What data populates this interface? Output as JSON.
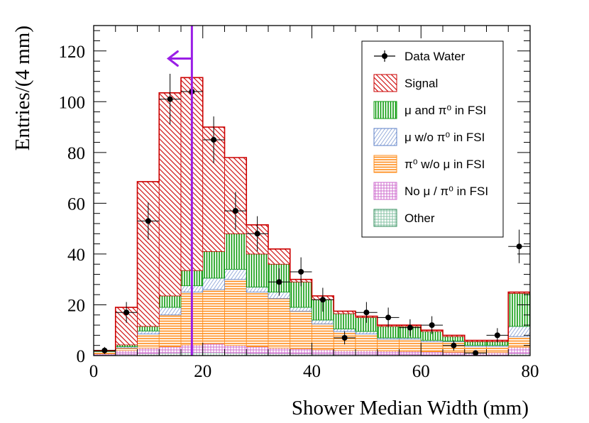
{
  "chart_data": {
    "type": "bar",
    "title": "",
    "xlabel": "Shower Median Width (mm)",
    "ylabel": "Entries/(4 mm)",
    "xlim": [
      0,
      80
    ],
    "ylim": [
      0,
      130
    ],
    "bin_edges": [
      0,
      4,
      8,
      12,
      16,
      20,
      24,
      28,
      32,
      36,
      40,
      44,
      48,
      52,
      56,
      60,
      64,
      68,
      72,
      76,
      80
    ],
    "x_ticks": [
      "0",
      "20",
      "40",
      "60",
      "80"
    ],
    "y_ticks": [
      "0",
      "20",
      "40",
      "60",
      "80",
      "100",
      "120"
    ],
    "cut_line_x": 18,
    "cut_arrow_direction": "left",
    "stack": [
      {
        "name": "Other",
        "color": "#2e8b57",
        "values": [
          0.3,
          0.5,
          0.8,
          1.0,
          1.2,
          1.2,
          1.0,
          0.9,
          0.8,
          0.7,
          0.6,
          0.5,
          0.5,
          0.4,
          0.4,
          0.3,
          0.3,
          0.2,
          0.2,
          0.8
        ]
      },
      {
        "name": "No μ / π⁰ in FSI",
        "color": "#cc66cc",
        "values": [
          0.4,
          1.5,
          2.2,
          2.5,
          3.0,
          3.5,
          3.0,
          2.6,
          2.2,
          2.0,
          1.7,
          1.5,
          1.5,
          1.4,
          1.3,
          1.2,
          1.0,
          1.0,
          1.0,
          2.5
        ]
      },
      {
        "name": "π⁰ w/o μ in FSI",
        "color": "#ff8c1a",
        "values": [
          0.8,
          1.0,
          5.5,
          12.5,
          20.8,
          21.3,
          26.0,
          21.5,
          19.5,
          14.8,
          10.2,
          7.5,
          6.5,
          4.7,
          4.8,
          4.0,
          4.2,
          2.4,
          2.4,
          4.2
        ]
      },
      {
        "name": "μ w/o π⁰ in FSI",
        "color": "#5b7fc7",
        "values": [
          0.1,
          0.5,
          1.2,
          3.0,
          2.5,
          4.5,
          4.0,
          2.0,
          2.5,
          1.5,
          1.5,
          1.0,
          1.0,
          0.5,
          0.5,
          0.5,
          0.2,
          0.4,
          0.4,
          4.0
        ]
      },
      {
        "name": "μ and π⁰ in FSI",
        "color": "#0a9b0a",
        "values": [
          0.2,
          0.7,
          1.8,
          4.5,
          6.0,
          10.5,
          14.0,
          13.0,
          11.0,
          10.0,
          8.0,
          6.0,
          5.5,
          4.5,
          4.5,
          3.5,
          1.8,
          1.5,
          1.5,
          13.0
        ]
      },
      {
        "name": "Signal",
        "color": "#cc0000",
        "values": [
          0.2,
          14.8,
          57.0,
          80.0,
          76.0,
          49.0,
          30.0,
          11.5,
          6.0,
          1.0,
          1.5,
          1.0,
          0.5,
          0.5,
          0.5,
          0.5,
          0.5,
          0.5,
          0.5,
          0.5
        ]
      }
    ],
    "data_series": {
      "name": "Data Water",
      "x": [
        2,
        6,
        10,
        14,
        18,
        22,
        26,
        30,
        34,
        38,
        42,
        46,
        50,
        54,
        58,
        62,
        66,
        70,
        74,
        78
      ],
      "y": [
        2,
        17,
        53,
        101,
        104,
        85,
        57,
        48,
        29,
        33,
        22,
        7,
        17,
        15,
        11,
        12,
        4,
        1,
        8,
        43
      ],
      "yerr": [
        1.4,
        4.1,
        7.3,
        10.0,
        10.2,
        9.2,
        7.5,
        6.9,
        5.4,
        5.7,
        4.7,
        2.6,
        4.1,
        3.9,
        3.3,
        3.5,
        2.0,
        1.0,
        2.8,
        6.6
      ]
    },
    "legend": [
      {
        "label": "Data Water",
        "kind": "data"
      },
      {
        "label": "Signal",
        "kind": "fill",
        "color": "#cc0000"
      },
      {
        "label": "μ and π⁰ in FSI",
        "kind": "fill",
        "color": "#0a9b0a"
      },
      {
        "label": "μ w/o π⁰ in FSI",
        "kind": "fill",
        "color": "#5b7fc7"
      },
      {
        "label": "π⁰ w/o μ in FSI",
        "kind": "fill",
        "color": "#ff8c1a"
      },
      {
        "label": "No μ / π⁰ in FSI",
        "kind": "fill",
        "color": "#cc66cc"
      },
      {
        "label": "Other",
        "kind": "fill",
        "color": "#2e8b57"
      }
    ],
    "legend_position": "top-right",
    "cut_line_color": "#9a1ee6"
  }
}
